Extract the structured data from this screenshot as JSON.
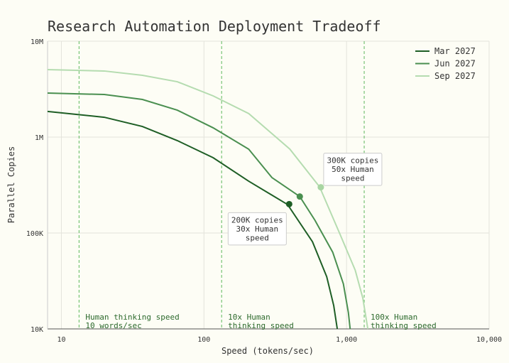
{
  "chart_data": {
    "type": "line",
    "title": "Research Automation Deployment Tradeoff",
    "x_label": "Speed (tokens/sec)",
    "y_label": "Parallel Copies",
    "xscale": "log",
    "yscale": "log",
    "grid": true,
    "legend": "upper right",
    "xlim": [
      8,
      10000
    ],
    "ylim": [
      10000,
      10000000
    ],
    "xticks": [
      10,
      100,
      {
        "value": 1000,
        "label": "1,000"
      },
      {
        "value": 10000,
        "label": "10,000"
      }
    ],
    "yticks": [
      {
        "value": 10000,
        "label": "10K"
      },
      {
        "value": 100000,
        "label": "100K"
      },
      {
        "value": 1000000,
        "label": "1M"
      },
      {
        "value": 10000000,
        "label": "10M"
      }
    ],
    "series": [
      {
        "name": "Mar 2027",
        "color": "#1e5e25",
        "x": [
          8,
          20,
          37,
          65,
          116,
          206,
          386,
          577,
          726,
          813,
          861
        ],
        "values": [
          1850000,
          1610000,
          1290000,
          920000,
          610000,
          347000,
          198000,
          81000,
          35000,
          17500,
          10000
        ]
      },
      {
        "name": "Jun 2027",
        "color": "#4a8f50",
        "x": [
          8,
          20,
          37,
          65,
          116,
          206,
          300,
          470,
          600,
          800,
          950,
          1030,
          1060
        ],
        "values": [
          2880000,
          2780000,
          2470000,
          1910000,
          1250000,
          748000,
          378000,
          240000,
          136000,
          63000,
          29500,
          14800,
          10000
        ]
      },
      {
        "name": "Sep 2027",
        "color": "#b5dcb0",
        "x": [
          8,
          20,
          37,
          65,
          116,
          206,
          400,
          647,
          900,
          1150,
          1300,
          1410
        ],
        "values": [
          5060000,
          4890000,
          4410000,
          3780000,
          2690000,
          1760000,
          750000,
          303000,
          97000,
          41000,
          21000,
          10000
        ]
      }
    ],
    "reference_lines": [
      {
        "x": 13.3,
        "color": "#5cb85c",
        "label": [
          "Human thinking speed",
          "10 words/sec"
        ]
      },
      {
        "x": 133,
        "color": "#5cb85c",
        "label": [
          "10x Human",
          "thinking speed"
        ]
      },
      {
        "x": 1330,
        "color": "#5cb85c",
        "label": [
          "100x Human",
          "thinking speed"
        ]
      }
    ],
    "markers": [
      {
        "x": 396,
        "y": 200000,
        "color": "#1e5e25",
        "label": [
          "200K copies",
          "30x Human",
          "speed"
        ]
      },
      {
        "x": 470,
        "y": 240000,
        "color": "#4a8f50"
      },
      {
        "x": 660,
        "y": 300000,
        "color": "#a8d5a2",
        "label": [
          "300K copies",
          "50x Human",
          "speed"
        ]
      }
    ]
  }
}
